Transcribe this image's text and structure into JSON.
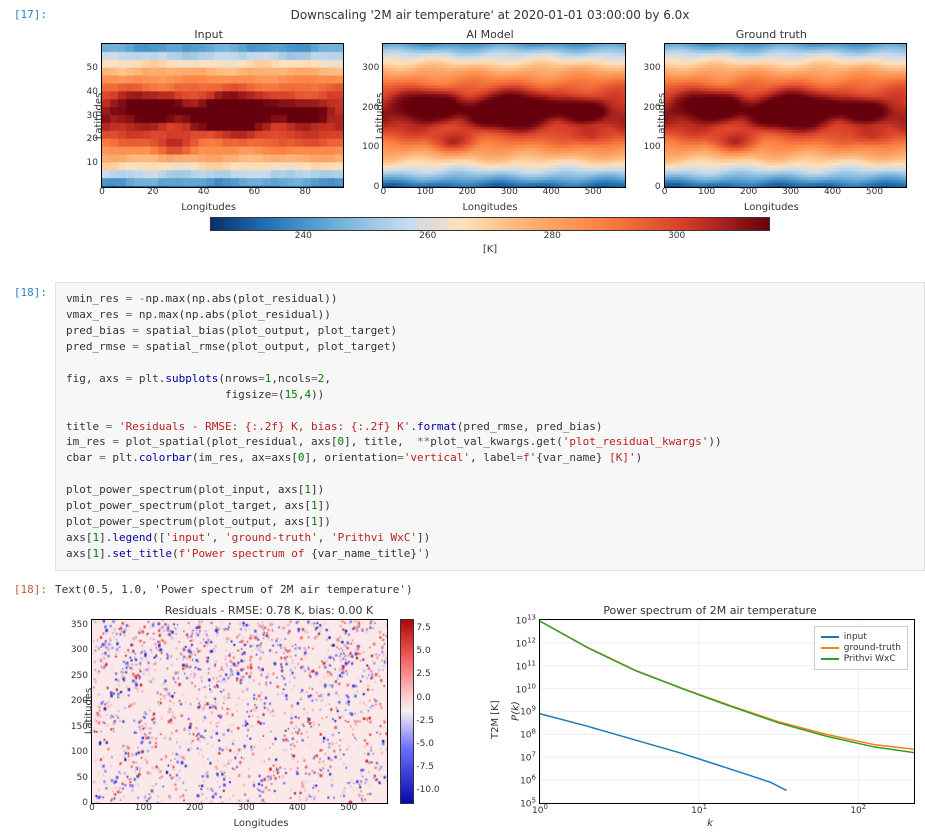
{
  "cell17": {
    "prompt": "[17]:",
    "fig": {
      "suptitle": "Downscaling '2M air temperature' at 2020-01-01 03:00:00 by 6.0x",
      "subtitles": [
        "Input",
        "AI Model",
        "Ground truth"
      ],
      "ylabel": "Latitudes",
      "xlabel": "Longitudes",
      "input_xticks": [
        0,
        20,
        40,
        60,
        80
      ],
      "input_yticks": [
        10,
        20,
        30,
        40,
        50
      ],
      "input_xlim": [
        0,
        95
      ],
      "input_ylim": [
        0,
        60
      ],
      "hr_xticks": [
        0,
        100,
        200,
        300,
        400,
        500
      ],
      "hr_yticks": [
        0,
        100,
        200,
        300
      ],
      "hr_xlim": [
        0,
        575
      ],
      "hr_ylim": [
        0,
        360
      ],
      "colorbar": {
        "ticks": [
          240,
          260,
          280,
          300
        ],
        "vmin": 225,
        "vmax": 315,
        "label": "[K]",
        "stops": [
          [
            0.0,
            "#08306b"
          ],
          [
            0.1,
            "#2171b5"
          ],
          [
            0.22,
            "#6baed6"
          ],
          [
            0.35,
            "#c6dbef"
          ],
          [
            0.45,
            "#fee1bd"
          ],
          [
            0.55,
            "#fdb77a"
          ],
          [
            0.7,
            "#fc8242"
          ],
          [
            0.85,
            "#d73d29"
          ],
          [
            1.0,
            "#67000d"
          ]
        ]
      }
    }
  },
  "cell18": {
    "prompt": "[18]:",
    "code_lines": [
      [
        [
          "n",
          "vmin_res "
        ],
        [
          "o",
          "= -"
        ],
        [
          "n",
          "np.max(np.abs(plot_residual))"
        ]
      ],
      [
        [
          "n",
          "vmax_res "
        ],
        [
          "o",
          "= "
        ],
        [
          "n",
          "np.max(np.abs(plot_residual))"
        ]
      ],
      [
        [
          "n",
          "pred_bias "
        ],
        [
          "o",
          "= "
        ],
        [
          "n",
          "spatial_bias(plot_output, plot_target)"
        ]
      ],
      [
        [
          "n",
          "pred_rmse "
        ],
        [
          "o",
          "= "
        ],
        [
          "n",
          "spatial_rmse(plot_output, plot_target)"
        ]
      ],
      [
        [
          "n",
          ""
        ]
      ],
      [
        [
          "n",
          "fig, axs "
        ],
        [
          "o",
          "= "
        ],
        [
          "n",
          "plt."
        ],
        [
          "fn",
          "subplots"
        ],
        [
          "n",
          "(nrows"
        ],
        [
          "o",
          "="
        ],
        [
          "m",
          "1"
        ],
        [
          "n",
          ",ncols"
        ],
        [
          "o",
          "="
        ],
        [
          "m",
          "2"
        ],
        [
          "n",
          ","
        ]
      ],
      [
        [
          "n",
          "                        figsize"
        ],
        [
          "o",
          "="
        ],
        [
          "n",
          "("
        ],
        [
          "m",
          "15"
        ],
        [
          "n",
          ","
        ],
        [
          "m",
          "4"
        ],
        [
          "n",
          "))"
        ]
      ],
      [
        [
          "n",
          ""
        ]
      ],
      [
        [
          "n",
          "title "
        ],
        [
          "o",
          "= "
        ],
        [
          "s",
          "'Residuals - RMSE: {:.2f} K, bias: {:.2f} K'"
        ],
        [
          "n",
          "."
        ],
        [
          "fn",
          "format"
        ],
        [
          "n",
          "(pred_rmse, pred_bias)"
        ]
      ],
      [
        [
          "n",
          "im_res "
        ],
        [
          "o",
          "= "
        ],
        [
          "n",
          "plot_spatial(plot_residual, axs["
        ],
        [
          "m",
          "0"
        ],
        [
          "n",
          "], title,  "
        ],
        [
          "o",
          "**"
        ],
        [
          "n",
          "plot_val_kwargs.get("
        ],
        [
          "s",
          "'plot_residual_kwargs'"
        ],
        [
          "n",
          "))"
        ]
      ],
      [
        [
          "n",
          "cbar "
        ],
        [
          "o",
          "= "
        ],
        [
          "n",
          "plt."
        ],
        [
          "fn",
          "colorbar"
        ],
        [
          "n",
          "(im_res, ax"
        ],
        [
          "o",
          "="
        ],
        [
          "n",
          "axs["
        ],
        [
          "m",
          "0"
        ],
        [
          "n",
          "], orientation"
        ],
        [
          "o",
          "="
        ],
        [
          "s",
          "'vertical'"
        ],
        [
          "n",
          ", label"
        ],
        [
          "o",
          "="
        ],
        [
          "s",
          "f'"
        ],
        [
          "n",
          "{var_name}"
        ],
        [
          "s",
          " [K]'"
        ],
        [
          "n",
          ")"
        ]
      ],
      [
        [
          "n",
          ""
        ]
      ],
      [
        [
          "n",
          "plot_power_spectrum(plot_input, axs["
        ],
        [
          "m",
          "1"
        ],
        [
          "n",
          "])"
        ]
      ],
      [
        [
          "n",
          "plot_power_spectrum(plot_target, axs["
        ],
        [
          "m",
          "1"
        ],
        [
          "n",
          "])"
        ]
      ],
      [
        [
          "n",
          "plot_power_spectrum(plot_output, axs["
        ],
        [
          "m",
          "1"
        ],
        [
          "n",
          "])"
        ]
      ],
      [
        [
          "n",
          "axs["
        ],
        [
          "m",
          "1"
        ],
        [
          "n",
          "]."
        ],
        [
          "fn",
          "legend"
        ],
        [
          "n",
          "(["
        ],
        [
          "s",
          "'input'"
        ],
        [
          "n",
          ", "
        ],
        [
          "s",
          "'ground-truth'"
        ],
        [
          "n",
          ", "
        ],
        [
          "s",
          "'Prithvi WxC'"
        ],
        [
          "n",
          "])"
        ]
      ],
      [
        [
          "n",
          "axs["
        ],
        [
          "m",
          "1"
        ],
        [
          "n",
          "]."
        ],
        [
          "fn",
          "set_title"
        ],
        [
          "n",
          "("
        ],
        [
          "s",
          "f'Power spectrum of "
        ],
        [
          "n",
          "{var_name_title}"
        ],
        [
          "s",
          "'"
        ],
        [
          "n",
          ")"
        ]
      ]
    ],
    "out_prompt": "[18]:",
    "out_text": "Text(0.5, 1.0, 'Power spectrum of 2M air temperature')",
    "fig": {
      "residuals": {
        "title": "Residuals - RMSE: 0.78 K, bias: 0.00 K",
        "ylabel": "Latitudes",
        "xlabel": "Longitudes",
        "xticks": [
          0,
          100,
          200,
          300,
          400,
          500
        ],
        "yticks": [
          0,
          50,
          100,
          150,
          200,
          250,
          300,
          350
        ],
        "xlim": [
          0,
          575
        ],
        "ylim": [
          0,
          360
        ],
        "colorbar": {
          "ticks": [
            7.5,
            5.0,
            2.5,
            0.0,
            -2.5,
            -5.0,
            -7.5,
            -10.0
          ],
          "vmin": -11.5,
          "vmax": 8.5,
          "label": "T2M [K]",
          "stops": [
            [
              0.0,
              "#0707b1"
            ],
            [
              0.3,
              "#6f6ffc"
            ],
            [
              0.5,
              "#f6eeee"
            ],
            [
              0.58,
              "#fbcfcf"
            ],
            [
              0.8,
              "#f35a5a"
            ],
            [
              1.0,
              "#b10707"
            ]
          ],
          "field_base": "#fbe8e8"
        }
      },
      "spectrum": {
        "title": "Power spectrum of 2M air temperature",
        "xlabel": "k",
        "ylabel": "P(k)",
        "xlog_ticks": [
          0,
          1,
          2
        ],
        "ylog_ticks": [
          5,
          6,
          7,
          8,
          9,
          10,
          11,
          12,
          13
        ],
        "xlim_log": [
          0,
          2.35
        ],
        "ylim_log": [
          5,
          13
        ],
        "legend": [
          {
            "label": "input",
            "color": "#1f77b4"
          },
          {
            "label": "ground-truth",
            "color": "#ff7f0e"
          },
          {
            "label": "Prithvi WxC",
            "color": "#2ca02c"
          }
        ],
        "series": {
          "input": [
            [
              0,
              8.9
            ],
            [
              0.3,
              8.35
            ],
            [
              0.6,
              7.75
            ],
            [
              0.9,
              7.15
            ],
            [
              1.1,
              6.7
            ],
            [
              1.3,
              6.25
            ],
            [
              1.45,
              5.9
            ],
            [
              1.55,
              5.55
            ]
          ],
          "ground_truth": [
            [
              0,
              12.95
            ],
            [
              0.3,
              11.8
            ],
            [
              0.6,
              10.8
            ],
            [
              0.9,
              10.0
            ],
            [
              1.2,
              9.25
            ],
            [
              1.5,
              8.55
            ],
            [
              1.8,
              8.0
            ],
            [
              2.1,
              7.55
            ],
            [
              2.35,
              7.35
            ]
          ],
          "prithvi": [
            [
              0,
              12.95
            ],
            [
              0.3,
              11.78
            ],
            [
              0.6,
              10.78
            ],
            [
              0.9,
              9.98
            ],
            [
              1.2,
              9.22
            ],
            [
              1.5,
              8.5
            ],
            [
              1.8,
              7.92
            ],
            [
              2.1,
              7.45
            ],
            [
              2.35,
              7.2
            ]
          ]
        }
      }
    }
  }
}
